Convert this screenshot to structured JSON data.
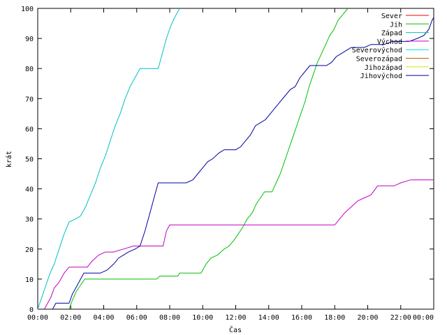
{
  "chart_data": {
    "type": "line",
    "xlabel": "Čas",
    "ylabel": "krát",
    "xlim": [
      0,
      24
    ],
    "ylim": [
      0,
      100
    ],
    "x_ticks": [
      {
        "value": 0,
        "label": "00:00"
      },
      {
        "value": 2,
        "label": "02:00"
      },
      {
        "value": 4,
        "label": "04:00"
      },
      {
        "value": 6,
        "label": "06:00"
      },
      {
        "value": 8,
        "label": "08:00"
      },
      {
        "value": 10,
        "label": "10:00"
      },
      {
        "value": 12,
        "label": "12:00"
      },
      {
        "value": 14,
        "label": "14:00"
      },
      {
        "value": 16,
        "label": "16:00"
      },
      {
        "value": 18,
        "label": "18:00"
      },
      {
        "value": 20,
        "label": "20:00"
      },
      {
        "value": 22,
        "label": "22:00"
      },
      {
        "value": 24,
        "label": "00:00"
      }
    ],
    "y_ticks": [
      0,
      10,
      20,
      30,
      40,
      50,
      60,
      70,
      80,
      90,
      100
    ],
    "grid": false,
    "legend_position": "top-right",
    "series": [
      {
        "name": "Sever",
        "color": "#ff0000",
        "points": []
      },
      {
        "name": "Jih",
        "color": "#00c000",
        "points": [
          [
            1.9,
            0
          ],
          [
            2.1,
            3
          ],
          [
            2.35,
            6
          ],
          [
            2.6,
            8
          ],
          [
            2.85,
            10
          ],
          [
            3.5,
            10
          ],
          [
            5.0,
            10
          ],
          [
            6.5,
            10
          ],
          [
            7.2,
            10
          ],
          [
            7.4,
            11
          ],
          [
            8.5,
            11
          ],
          [
            8.6,
            12
          ],
          [
            9.5,
            12
          ],
          [
            9.9,
            12
          ],
          [
            10.2,
            15
          ],
          [
            10.5,
            17
          ],
          [
            10.9,
            18
          ],
          [
            11.3,
            20
          ],
          [
            11.6,
            21
          ],
          [
            11.9,
            23
          ],
          [
            12.15,
            25
          ],
          [
            12.4,
            27
          ],
          [
            12.7,
            30
          ],
          [
            13.0,
            32
          ],
          [
            13.25,
            35
          ],
          [
            13.5,
            37
          ],
          [
            13.75,
            39
          ],
          [
            14.2,
            39
          ],
          [
            14.45,
            42
          ],
          [
            14.7,
            45
          ],
          [
            14.95,
            49
          ],
          [
            15.2,
            53
          ],
          [
            15.45,
            57
          ],
          [
            15.7,
            61
          ],
          [
            15.95,
            65
          ],
          [
            16.2,
            69
          ],
          [
            16.45,
            74
          ],
          [
            16.7,
            78
          ],
          [
            16.95,
            82
          ],
          [
            17.2,
            85
          ],
          [
            17.45,
            88
          ],
          [
            17.7,
            91
          ],
          [
            17.95,
            93
          ],
          [
            18.2,
            96
          ],
          [
            18.5,
            98
          ],
          [
            18.8,
            100
          ]
        ]
      },
      {
        "name": "Západ",
        "color": "#00c0c0",
        "points": [
          [
            0.0,
            0
          ],
          [
            0.25,
            4
          ],
          [
            0.5,
            8
          ],
          [
            0.75,
            12
          ],
          [
            1.0,
            15
          ],
          [
            1.3,
            20
          ],
          [
            1.6,
            25
          ],
          [
            1.9,
            29
          ],
          [
            2.3,
            30
          ],
          [
            2.6,
            31
          ],
          [
            2.9,
            34
          ],
          [
            3.2,
            38
          ],
          [
            3.5,
            42
          ],
          [
            3.8,
            47
          ],
          [
            4.1,
            51
          ],
          [
            4.4,
            56
          ],
          [
            4.7,
            61
          ],
          [
            5.0,
            65
          ],
          [
            5.3,
            70
          ],
          [
            5.6,
            74
          ],
          [
            5.9,
            77
          ],
          [
            6.2,
            80
          ],
          [
            6.6,
            80
          ],
          [
            7.0,
            80
          ],
          [
            7.3,
            80
          ],
          [
            7.55,
            85
          ],
          [
            7.8,
            90
          ],
          [
            8.05,
            94
          ],
          [
            8.3,
            97
          ],
          [
            8.6,
            100
          ]
        ]
      },
      {
        "name": "Východ",
        "color": "#c000c0",
        "points": [
          [
            0.4,
            0
          ],
          [
            0.6,
            2
          ],
          [
            0.8,
            4
          ],
          [
            1.0,
            7
          ],
          [
            1.3,
            9
          ],
          [
            1.6,
            12
          ],
          [
            1.9,
            14
          ],
          [
            2.5,
            14
          ],
          [
            3.0,
            14
          ],
          [
            3.3,
            16
          ],
          [
            3.7,
            18
          ],
          [
            4.1,
            19
          ],
          [
            4.6,
            19
          ],
          [
            5.2,
            20
          ],
          [
            5.8,
            21
          ],
          [
            6.5,
            21
          ],
          [
            7.2,
            21
          ],
          [
            7.6,
            21
          ],
          [
            7.8,
            26
          ],
          [
            8.0,
            28
          ],
          [
            9.0,
            28
          ],
          [
            10.0,
            28
          ],
          [
            12.0,
            28
          ],
          [
            14.0,
            28
          ],
          [
            16.0,
            28
          ],
          [
            17.0,
            28
          ],
          [
            17.5,
            28
          ],
          [
            18.0,
            28
          ],
          [
            18.3,
            30
          ],
          [
            18.6,
            32
          ],
          [
            19.0,
            34
          ],
          [
            19.4,
            36
          ],
          [
            19.8,
            37
          ],
          [
            20.2,
            38
          ],
          [
            20.6,
            41
          ],
          [
            21.1,
            41
          ],
          [
            21.6,
            41
          ],
          [
            22.0,
            42
          ],
          [
            22.6,
            43
          ],
          [
            24.0,
            43
          ]
        ]
      },
      {
        "name": "Severovýchod",
        "color": "#00e0e0",
        "points": []
      },
      {
        "name": "Severozápad",
        "color": "#c06000",
        "points": []
      },
      {
        "name": "Jihozápad",
        "color": "#e0e000",
        "points": []
      },
      {
        "name": "Jihovýchod",
        "color": "#0000a0",
        "points": [
          [
            0.9,
            0
          ],
          [
            1.1,
            2
          ],
          [
            1.5,
            2
          ],
          [
            1.9,
            2
          ],
          [
            2.1,
            5
          ],
          [
            2.4,
            8
          ],
          [
            2.8,
            12
          ],
          [
            3.3,
            12
          ],
          [
            3.8,
            12
          ],
          [
            4.2,
            13
          ],
          [
            4.6,
            15
          ],
          [
            4.9,
            17
          ],
          [
            5.2,
            18
          ],
          [
            5.5,
            19
          ],
          [
            5.9,
            20
          ],
          [
            6.2,
            21
          ],
          [
            6.5,
            26
          ],
          [
            6.8,
            32
          ],
          [
            7.1,
            38
          ],
          [
            7.3,
            42
          ],
          [
            8.0,
            42
          ],
          [
            9.0,
            42
          ],
          [
            9.4,
            43
          ],
          [
            9.7,
            45
          ],
          [
            10.0,
            47
          ],
          [
            10.3,
            49
          ],
          [
            10.6,
            50
          ],
          [
            11.0,
            52
          ],
          [
            11.3,
            53
          ],
          [
            12.0,
            53
          ],
          [
            12.3,
            54
          ],
          [
            12.6,
            56
          ],
          [
            12.9,
            58
          ],
          [
            13.2,
            61
          ],
          [
            13.5,
            62
          ],
          [
            13.8,
            63
          ],
          [
            14.1,
            65
          ],
          [
            14.4,
            67
          ],
          [
            14.7,
            69
          ],
          [
            15.0,
            71
          ],
          [
            15.3,
            73
          ],
          [
            15.6,
            74
          ],
          [
            15.9,
            77
          ],
          [
            16.2,
            79
          ],
          [
            16.5,
            81
          ],
          [
            17.0,
            81
          ],
          [
            17.5,
            81
          ],
          [
            17.8,
            82
          ],
          [
            18.1,
            84
          ],
          [
            18.4,
            85
          ],
          [
            18.7,
            86
          ],
          [
            19.0,
            87
          ],
          [
            19.4,
            87
          ],
          [
            19.8,
            87
          ],
          [
            20.2,
            88
          ],
          [
            20.6,
            88
          ],
          [
            21.0,
            88
          ],
          [
            21.5,
            89
          ],
          [
            22.0,
            89
          ],
          [
            22.5,
            89
          ],
          [
            23.0,
            90
          ],
          [
            23.4,
            91
          ],
          [
            23.7,
            93
          ],
          [
            23.9,
            96
          ],
          [
            24.0,
            97
          ]
        ]
      }
    ]
  }
}
